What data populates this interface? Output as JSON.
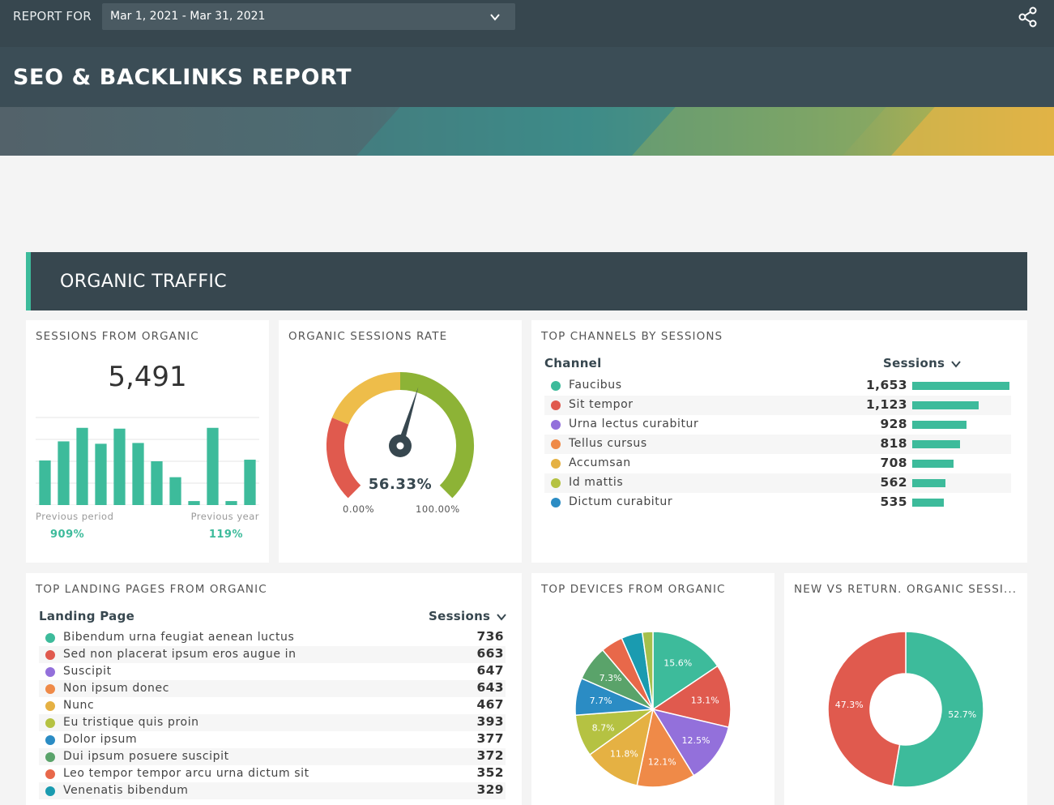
{
  "header": {
    "report_for_label": "REPORT FOR",
    "date_range": "Mar 1, 2021 - Mar 31, 2021",
    "title": "SEO & BACKLINKS REPORT"
  },
  "section": {
    "title": "ORGANIC TRAFFIC"
  },
  "sessions_card": {
    "title": "SESSIONS FROM ORGANIC",
    "value": "5,491",
    "previous_period_label": "Previous period",
    "previous_period_value": "909%",
    "previous_year_label": "Previous year",
    "previous_year_value": "119%",
    "chart_data": {
      "type": "bar",
      "values": [
        56,
        80,
        97,
        77,
        96,
        78,
        55,
        35,
        5,
        97,
        5,
        57
      ],
      "ylim": [
        0,
        110
      ],
      "color": "#3dbb9b"
    }
  },
  "rate_card": {
    "title": "ORGANIC SESSIONS RATE",
    "value": "56.33%",
    "min_label": "0.00%",
    "max_label": "100.00%",
    "chart_data": {
      "type": "gauge",
      "value": 56.33,
      "min": 0,
      "max": 100,
      "bands": [
        {
          "from": 0,
          "to": 25,
          "color": "#e05a4e"
        },
        {
          "from": 25,
          "to": 50,
          "color": "#eebd4a"
        },
        {
          "from": 50,
          "to": 100,
          "color": "#8db336"
        }
      ],
      "needle_color": "#37474f"
    }
  },
  "channels_card": {
    "title": "TOP CHANNELS BY SESSIONS",
    "col_channel": "Channel",
    "col_sessions": "Sessions",
    "chart_data": {
      "type": "table",
      "rows": [
        {
          "label": "Faucibus",
          "value": 1653,
          "display": "1,653",
          "color": "#3dbb9b"
        },
        {
          "label": "Sit tempor",
          "value": 1123,
          "display": "1,123",
          "color": "#e05a4e"
        },
        {
          "label": "Urna lectus curabitur",
          "value": 928,
          "display": "928",
          "color": "#9370db"
        },
        {
          "label": "Tellus cursus",
          "value": 818,
          "display": "818",
          "color": "#ef8a48"
        },
        {
          "label": "Accumsan",
          "value": 708,
          "display": "708",
          "color": "#e5b143"
        },
        {
          "label": "Id mattis",
          "value": 562,
          "display": "562",
          "color": "#b5c242"
        },
        {
          "label": "Dictum curabitur",
          "value": 535,
          "display": "535",
          "color": "#2b8cc4"
        }
      ]
    }
  },
  "landing_card": {
    "title": "TOP LANDING PAGES FROM ORGANIC",
    "col_page": "Landing Page",
    "col_sessions": "Sessions",
    "chart_data": {
      "type": "table",
      "rows": [
        {
          "label": "Bibendum urna feugiat aenean luctus",
          "value": 736,
          "color": "#3dbb9b"
        },
        {
          "label": "Sed non placerat ipsum eros augue in",
          "value": 663,
          "color": "#e05a4e"
        },
        {
          "label": "Suscipit",
          "value": 647,
          "color": "#9370db"
        },
        {
          "label": "Non ipsum donec",
          "value": 643,
          "color": "#ef8a48"
        },
        {
          "label": "Nunc",
          "value": 467,
          "color": "#e5b143"
        },
        {
          "label": "Eu tristique quis proin",
          "value": 393,
          "color": "#b5c242"
        },
        {
          "label": "Dolor ipsum",
          "value": 377,
          "color": "#2b8cc4"
        },
        {
          "label": "Dui ipsum posuere suscipit",
          "value": 372,
          "color": "#5aa36a"
        },
        {
          "label": "Leo tempor tempor arcu urna dictum sit",
          "value": 352,
          "color": "#e8684a"
        },
        {
          "label": "Venenatis bibendum",
          "value": 329,
          "color": "#1a9bb0"
        }
      ]
    }
  },
  "devices_card": {
    "title": "TOP DEVICES FROM ORGANIC",
    "chart_data": {
      "type": "pie",
      "slices": [
        {
          "value": 15.6,
          "label": "15.6%",
          "color": "#3dbb9b"
        },
        {
          "value": 13.1,
          "label": "13.1%",
          "color": "#e05a4e"
        },
        {
          "value": 12.5,
          "label": "12.5%",
          "color": "#9370db"
        },
        {
          "value": 12.1,
          "label": "12.1%",
          "color": "#ef8a48"
        },
        {
          "value": 11.8,
          "label": "11.8%",
          "color": "#e5b143"
        },
        {
          "value": 8.7,
          "label": "8.7%",
          "color": "#b5c242"
        },
        {
          "value": 7.7,
          "label": "7.7%",
          "color": "#2b8cc4"
        },
        {
          "value": 7.3,
          "label": "7.3%",
          "color": "#5aa36a"
        },
        {
          "value": 4.6,
          "label": "",
          "color": "#e8684a"
        },
        {
          "value": 4.4,
          "label": "",
          "color": "#1a9bb0"
        },
        {
          "value": 2.2,
          "label": "",
          "color": "#a5c04c"
        }
      ]
    }
  },
  "newreturn_card": {
    "title": "NEW VS RETURN. ORGANIC SESSI...",
    "chart_data": {
      "type": "pie",
      "donut": true,
      "slices": [
        {
          "value": 52.7,
          "label": "52.7%",
          "color": "#3dbb9b"
        },
        {
          "value": 47.3,
          "label": "47.3%",
          "color": "#e05a4e"
        }
      ]
    }
  }
}
